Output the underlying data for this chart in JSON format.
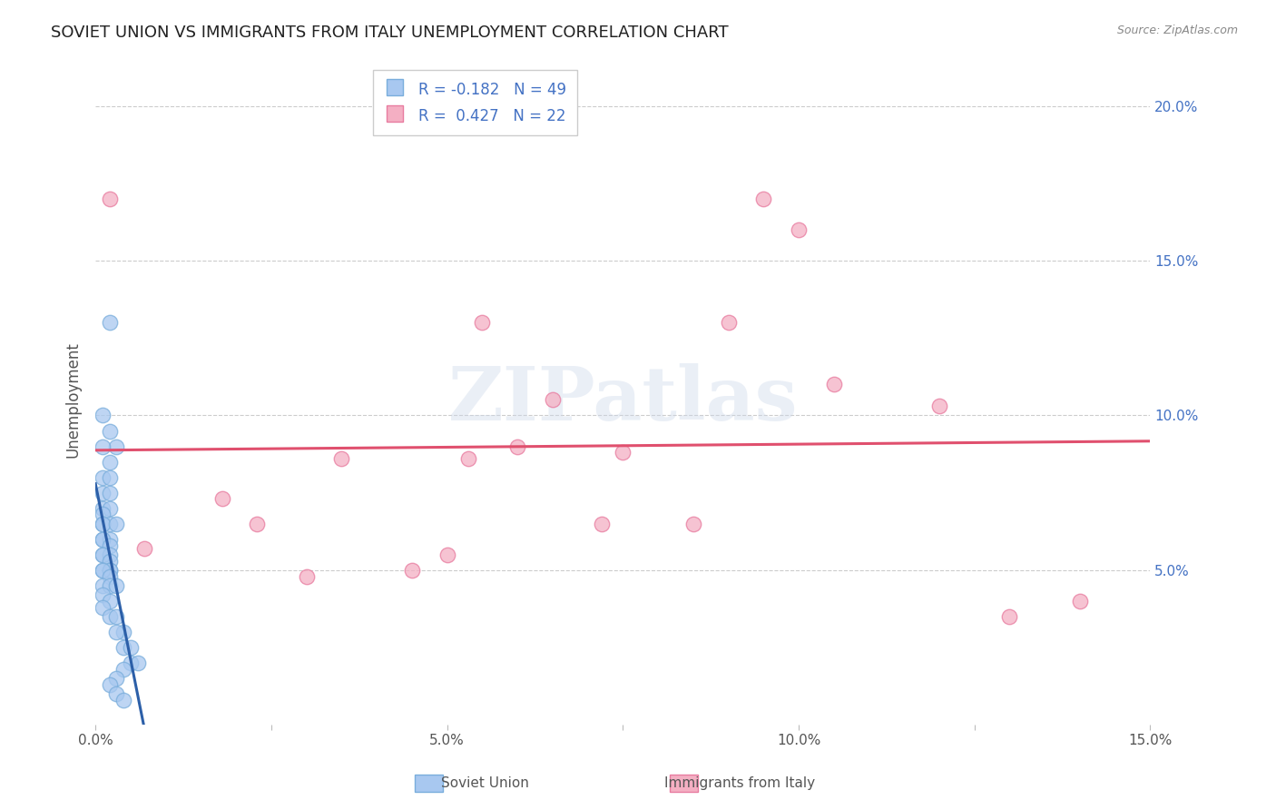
{
  "title": "SOVIET UNION VS IMMIGRANTS FROM ITALY UNEMPLOYMENT CORRELATION CHART",
  "source": "Source: ZipAtlas.com",
  "ylabel": "Unemployment",
  "xlim": [
    0.0,
    0.15
  ],
  "ylim": [
    0.0,
    0.21
  ],
  "ytick_vals": [
    0.05,
    0.1,
    0.15,
    0.2
  ],
  "ytick_labels_right": [
    "5.0%",
    "10.0%",
    "15.0%",
    "20.0%"
  ],
  "xtick_vals": [
    0.0,
    0.025,
    0.05,
    0.075,
    0.1,
    0.125,
    0.15
  ],
  "xtick_labels": [
    "0.0%",
    "",
    "5.0%",
    "",
    "10.0%",
    "",
    "15.0%"
  ],
  "soviet_x": [
    0.002,
    0.001,
    0.002,
    0.003,
    0.001,
    0.002,
    0.001,
    0.002,
    0.001,
    0.002,
    0.001,
    0.002,
    0.001,
    0.001,
    0.002,
    0.001,
    0.003,
    0.001,
    0.002,
    0.001,
    0.002,
    0.001,
    0.002,
    0.001,
    0.002,
    0.001,
    0.002,
    0.002,
    0.001,
    0.002,
    0.001,
    0.002,
    0.003,
    0.001,
    0.002,
    0.001,
    0.002,
    0.003,
    0.004,
    0.003,
    0.004,
    0.005,
    0.005,
    0.006,
    0.004,
    0.003,
    0.002,
    0.003,
    0.004
  ],
  "soviet_y": [
    0.13,
    0.1,
    0.095,
    0.09,
    0.09,
    0.085,
    0.08,
    0.08,
    0.075,
    0.075,
    0.07,
    0.07,
    0.068,
    0.065,
    0.065,
    0.065,
    0.065,
    0.06,
    0.06,
    0.06,
    0.058,
    0.055,
    0.055,
    0.055,
    0.053,
    0.05,
    0.05,
    0.05,
    0.05,
    0.048,
    0.045,
    0.045,
    0.045,
    0.042,
    0.04,
    0.038,
    0.035,
    0.035,
    0.03,
    0.03,
    0.025,
    0.025,
    0.02,
    0.02,
    0.018,
    0.015,
    0.013,
    0.01,
    0.008
  ],
  "italy_x": [
    0.002,
    0.007,
    0.018,
    0.023,
    0.03,
    0.035,
    0.045,
    0.05,
    0.053,
    0.055,
    0.06,
    0.065,
    0.072,
    0.075,
    0.085,
    0.09,
    0.095,
    0.1,
    0.105,
    0.12,
    0.13,
    0.14
  ],
  "italy_y": [
    0.17,
    0.057,
    0.073,
    0.065,
    0.048,
    0.086,
    0.05,
    0.055,
    0.086,
    0.13,
    0.09,
    0.105,
    0.065,
    0.088,
    0.065,
    0.13,
    0.17,
    0.16,
    0.11,
    0.103,
    0.035,
    0.04
  ],
  "soviet_R": -0.182,
  "soviet_N": 49,
  "italy_R": 0.427,
  "italy_N": 22,
  "blue_dot_color": "#a8c8f0",
  "blue_edge_color": "#7aaedc",
  "pink_dot_color": "#f4afc3",
  "pink_edge_color": "#e87ca0",
  "blue_line_color": "#2c5fa8",
  "pink_line_color": "#e0506e",
  "background_color": "#ffffff",
  "grid_color": "#cccccc",
  "watermark": "ZIPatlas",
  "right_tick_color": "#4472c4",
  "title_color": "#222222",
  "label_color": "#555555",
  "source_color": "#888888"
}
